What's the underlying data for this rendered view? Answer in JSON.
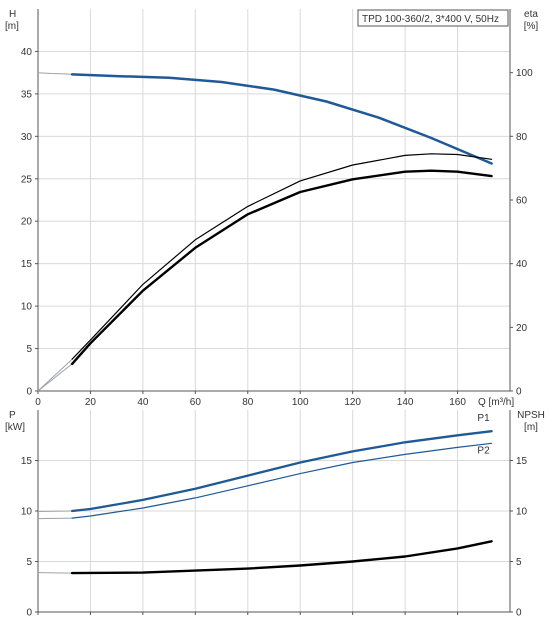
{
  "chart_data": [
    {
      "type": "line",
      "panel": "head-efficiency",
      "title": "TPD 100-360/2, 3*400 V, 50Hz",
      "xlabel": "Q [m³/h]",
      "ylabel": "H [m]",
      "ylabel_parts": [
        "H",
        "[m]"
      ],
      "y2label": "eta [%]",
      "y2label_parts": [
        "eta",
        "[%]"
      ],
      "xlim": [
        0,
        180
      ],
      "ylim": [
        0,
        45
      ],
      "y2lim": [
        0,
        120
      ],
      "xticks": [
        0,
        20,
        40,
        60,
        80,
        100,
        120,
        140,
        160
      ],
      "yticks": [
        0,
        5,
        10,
        15,
        20,
        25,
        30,
        35,
        40
      ],
      "y2ticks": [
        0,
        20,
        40,
        60,
        80,
        100
      ],
      "grid": true,
      "colors": {
        "head": "#1f5a96",
        "eta": "#000000",
        "extension": "#9aa3ad"
      },
      "series": [
        {
          "key": "head",
          "axis": "left",
          "stroke": 2.5,
          "x": [
            13,
            30,
            50,
            70,
            90,
            110,
            130,
            150,
            173
          ],
          "y": [
            37.3,
            37.1,
            36.9,
            36.4,
            35.5,
            34.1,
            32.2,
            29.8,
            26.8
          ],
          "x_ext": [
            0,
            5,
            10,
            13
          ],
          "y_ext": [
            37.5,
            37.4,
            37.35,
            37.3
          ]
        },
        {
          "key": "eta-upper",
          "axis": "right",
          "stroke": 1.2,
          "x": [
            13,
            20,
            40,
            60,
            80,
            100,
            120,
            140,
            150,
            160,
            173
          ],
          "y": [
            10,
            16,
            33.5,
            47.5,
            58,
            66,
            71,
            74,
            74.5,
            74.3,
            72.8
          ],
          "x_ext": [
            0,
            13
          ],
          "y_ext": [
            0,
            10
          ]
        },
        {
          "key": "eta-lower",
          "axis": "right",
          "stroke": 2.4,
          "x": [
            13,
            20,
            40,
            60,
            80,
            100,
            120,
            140,
            150,
            160,
            173
          ],
          "y": [
            8.5,
            15,
            31.5,
            45,
            55.5,
            62.5,
            66.5,
            68.9,
            69.2,
            68.9,
            67.5
          ],
          "x_ext": [
            0,
            13
          ],
          "y_ext": [
            0,
            8.5
          ]
        }
      ]
    },
    {
      "type": "line",
      "panel": "power-npsh",
      "xlabel": "",
      "ylabel": "P [kW]",
      "ylabel_parts": [
        "P",
        "[kW]"
      ],
      "y2label": "NPSH [m]",
      "y2label_parts": [
        "NPSH",
        "[m]"
      ],
      "xlim": [
        0,
        180
      ],
      "ylim": [
        0,
        20
      ],
      "y2lim": [
        0,
        20
      ],
      "xticks": [
        0,
        20,
        40,
        60,
        80,
        100,
        120,
        140,
        160
      ],
      "yticks": [
        0,
        5,
        10,
        15
      ],
      "y2ticks": [
        0,
        5,
        10,
        15
      ],
      "grid": true,
      "colors": {
        "P1": "#1f5a96",
        "P2": "#1f5a96",
        "npsh": "#000000",
        "extension": "#9aa3ad"
      },
      "series": [
        {
          "key": "P1",
          "name": "P1",
          "axis": "left",
          "stroke": 2.3,
          "x": [
            13,
            20,
            40,
            60,
            80,
            100,
            120,
            140,
            160,
            173
          ],
          "y": [
            10.0,
            10.2,
            11.1,
            12.2,
            13.5,
            14.8,
            15.9,
            16.8,
            17.5,
            17.9
          ],
          "x_ext": [
            0,
            13
          ],
          "y_ext": [
            9.95,
            10.0
          ]
        },
        {
          "key": "P2",
          "name": "P2",
          "axis": "left",
          "stroke": 1.2,
          "x": [
            13,
            20,
            40,
            60,
            80,
            100,
            120,
            140,
            160,
            173
          ],
          "y": [
            9.3,
            9.5,
            10.3,
            11.3,
            12.5,
            13.7,
            14.8,
            15.6,
            16.3,
            16.7
          ],
          "x_ext": [
            0,
            13
          ],
          "y_ext": [
            9.25,
            9.3
          ]
        },
        {
          "key": "npsh",
          "axis": "right",
          "stroke": 2.4,
          "x": [
            13,
            40,
            80,
            100,
            120,
            140,
            160,
            173
          ],
          "y": [
            3.85,
            3.9,
            4.3,
            4.6,
            5.0,
            5.5,
            6.3,
            7.0
          ],
          "x_ext": [
            0,
            13
          ],
          "y_ext": [
            3.9,
            3.85
          ]
        }
      ]
    }
  ]
}
